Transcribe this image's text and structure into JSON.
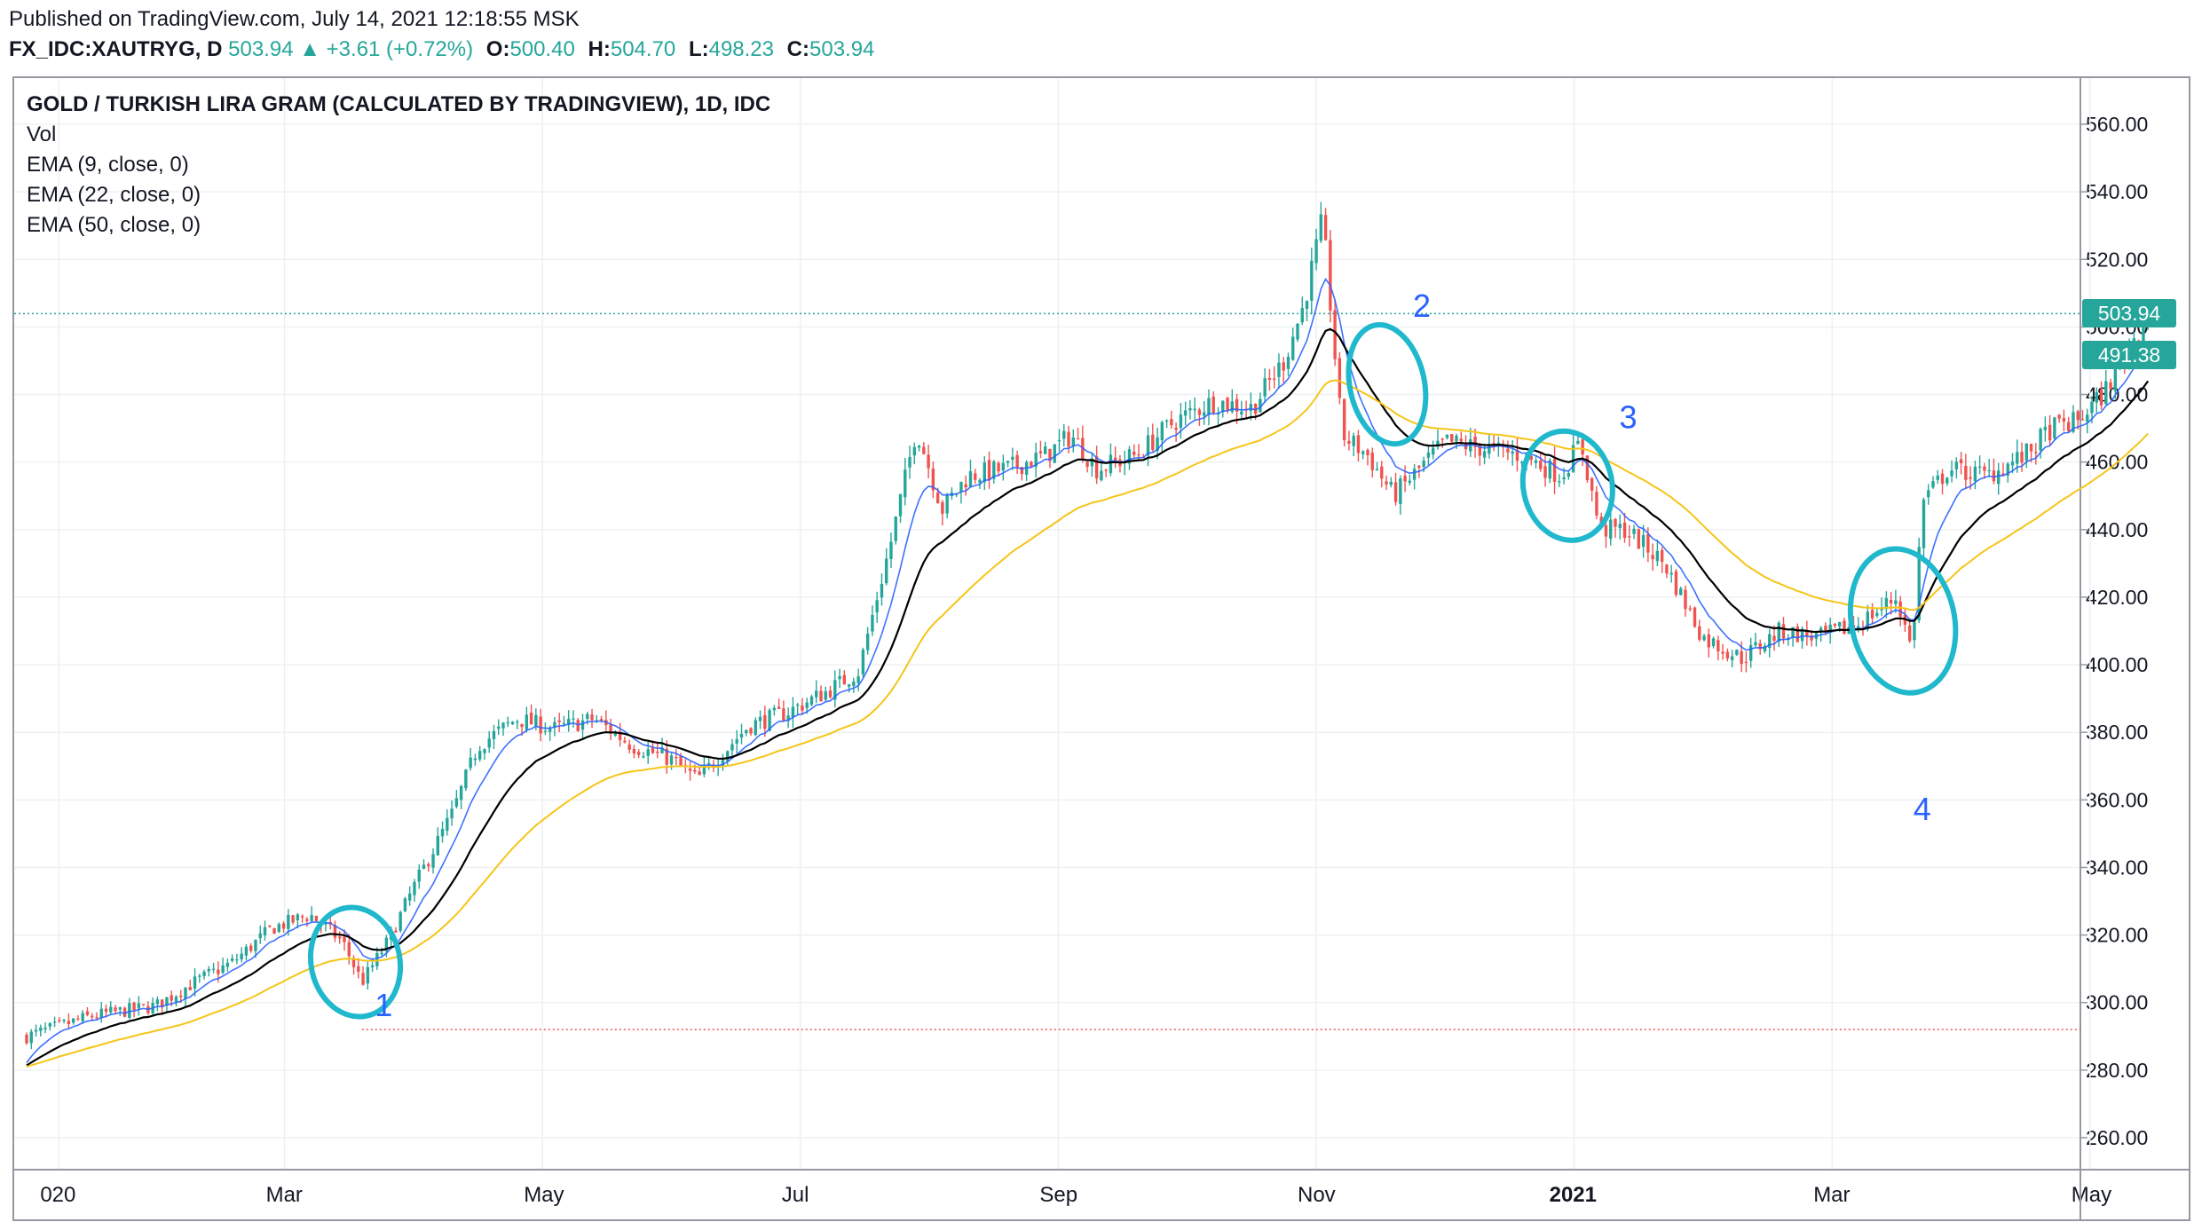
{
  "header": {
    "published": "Published on TradingView.com, July 14, 2021 12:18:55 MSK",
    "symbol": "FX_IDC:XAUTRYG, D",
    "last": "503.94",
    "change": "+3.61 (+0.72%)",
    "o_label": "O:",
    "o_value": "500.40",
    "h_label": "H:",
    "h_value": "504.70",
    "l_label": "L:",
    "l_value": "498.23",
    "c_label": "C:",
    "c_value": "503.94"
  },
  "legend": {
    "title": "GOLD / TURKISH LIRA GRAM (CALCULATED BY TRADINGVIEW), 1D, IDC",
    "vol": "Vol",
    "ema1": "EMA (9, close, 0)",
    "ema2": "EMA (22, close, 0)",
    "ema3": "EMA (50, close, 0)"
  },
  "badges": {
    "last_price": "503.94",
    "ema_value": "491.38"
  },
  "colors": {
    "up": "#26a69a",
    "down": "#ef5350",
    "ema9": "#2962ff",
    "ema22": "#000000",
    "ema50": "#f5c518",
    "annotation": "#1fb8cc",
    "annotation_text": "#2962ff"
  },
  "chart_data": {
    "type": "candlestick",
    "title": "GOLD / TURKISH LIRA GRAM (CALCULATED BY TRADINGVIEW), 1D, IDC",
    "ylim": [
      250,
      570
    ],
    "y_ticks": [
      560,
      540,
      520,
      500,
      480,
      460,
      440,
      420,
      400,
      380,
      360,
      340,
      320,
      300,
      280,
      260
    ],
    "y_tick_labels": [
      "560.00",
      "540.00",
      "520.00",
      "500.00",
      "480.00",
      "460.00",
      "440.00",
      "420.00",
      "400.00",
      "380.00",
      "360.00",
      "340.00",
      "320.00",
      "300.00",
      "280.00",
      "260.00"
    ],
    "x_ticks": [
      {
        "month_index": 0.25,
        "label": "020"
      },
      {
        "month_index": 2,
        "label": "Mar"
      },
      {
        "month_index": 4,
        "label": "May"
      },
      {
        "month_index": 6,
        "label": "Jul"
      },
      {
        "month_index": 8,
        "label": "Sep"
      },
      {
        "month_index": 10,
        "label": "Nov"
      },
      {
        "month_index": 12,
        "label": "2021"
      },
      {
        "month_index": 14,
        "label": "Mar"
      },
      {
        "month_index": 16,
        "label": "May"
      }
    ],
    "x_range_months": [
      0,
      16.45
    ],
    "close_anchors": [
      [
        0.0,
        290
      ],
      [
        0.5,
        296
      ],
      [
        1.0,
        299
      ],
      [
        1.3,
        306
      ],
      [
        1.6,
        312
      ],
      [
        1.9,
        322
      ],
      [
        2.2,
        326
      ],
      [
        2.45,
        318
      ],
      [
        2.6,
        306
      ],
      [
        2.8,
        318
      ],
      [
        3.0,
        334
      ],
      [
        3.3,
        356
      ],
      [
        3.5,
        376
      ],
      [
        3.8,
        384
      ],
      [
        4.1,
        381
      ],
      [
        4.4,
        384
      ],
      [
        4.7,
        376
      ],
      [
        5.0,
        372
      ],
      [
        5.2,
        366
      ],
      [
        5.4,
        374
      ],
      [
        5.6,
        382
      ],
      [
        5.9,
        386
      ],
      [
        6.2,
        392
      ],
      [
        6.45,
        398
      ],
      [
        6.7,
        436
      ],
      [
        6.9,
        470
      ],
      [
        7.1,
        446
      ],
      [
        7.3,
        456
      ],
      [
        7.6,
        458
      ],
      [
        7.9,
        462
      ],
      [
        8.1,
        468
      ],
      [
        8.3,
        458
      ],
      [
        8.6,
        462
      ],
      [
        8.9,
        472
      ],
      [
        9.2,
        478
      ],
      [
        9.5,
        476
      ],
      [
        9.75,
        490
      ],
      [
        9.9,
        506
      ],
      [
        10.05,
        532
      ],
      [
        10.2,
        468
      ],
      [
        10.4,
        462
      ],
      [
        10.6,
        450
      ],
      [
        10.8,
        458
      ],
      [
        11.0,
        466
      ],
      [
        11.3,
        464
      ],
      [
        11.6,
        462
      ],
      [
        11.9,
        456
      ],
      [
        12.05,
        466
      ],
      [
        12.2,
        440
      ],
      [
        12.4,
        440
      ],
      [
        12.7,
        430
      ],
      [
        13.0,
        408
      ],
      [
        13.3,
        402
      ],
      [
        13.6,
        410
      ],
      [
        13.9,
        408
      ],
      [
        14.2,
        412
      ],
      [
        14.5,
        420
      ],
      [
        14.62,
        404
      ],
      [
        14.7,
        448
      ],
      [
        14.9,
        458
      ],
      [
        15.2,
        456
      ],
      [
        15.5,
        462
      ],
      [
        15.7,
        470
      ],
      [
        15.9,
        472
      ],
      [
        16.1,
        480
      ],
      [
        16.3,
        494
      ],
      [
        16.45,
        503.94
      ]
    ],
    "series": [
      {
        "name": "EMA (9, close, 0)",
        "period": 9
      },
      {
        "name": "EMA (22, close, 0)",
        "period": 22
      },
      {
        "name": "EMA (50, close, 0)",
        "period": 50
      }
    ],
    "last_price": 503.94,
    "ema_last": 491.38,
    "support_level": 292,
    "annotations": [
      {
        "label": "1",
        "month": 2.55,
        "price": 312
      },
      {
        "label": "2",
        "month": 10.55,
        "price": 483
      },
      {
        "label": "3",
        "month": 11.95,
        "price": 453
      },
      {
        "label": "4",
        "month": 14.55,
        "price": 413
      }
    ]
  }
}
